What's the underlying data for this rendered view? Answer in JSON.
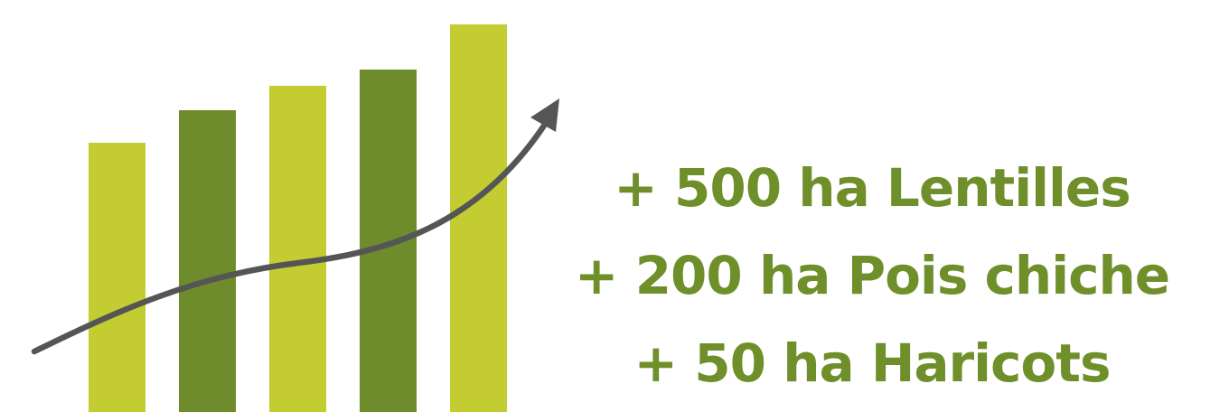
{
  "chart_data": {
    "type": "bar",
    "categories": [
      "",
      "",
      "",
      "",
      ""
    ],
    "values": [
      298,
      334,
      361,
      379,
      429
    ],
    "ylim": [
      0,
      456
    ],
    "colors": [
      "#c3cd32",
      "#6f8c2c",
      "#c3cd32",
      "#6f8c2c",
      "#c3cd32"
    ],
    "trend_arrow": {
      "color": "#555555",
      "direction": "up"
    }
  },
  "text_lines": [
    "+ 500 ha Lentilles",
    "+ 200 ha Pois chiche",
    "+ 50 ha Haricots"
  ],
  "colors": {
    "text": "#6f8f2a",
    "bar_light": "#c3cd32",
    "bar_dark": "#6f8c2c",
    "arrow": "#555555"
  }
}
